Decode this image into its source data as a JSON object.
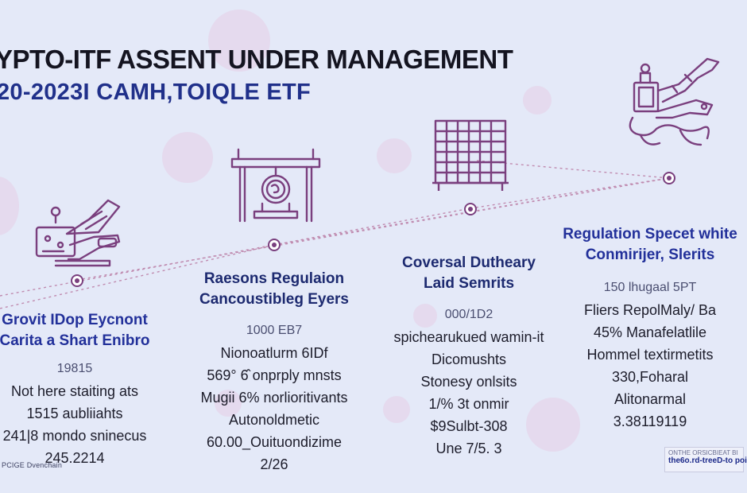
{
  "header": {
    "title": "YPTO-ITF ASSENT UNDER MANAGEMENT",
    "subtitle": "20-2023I CAMH,TOIQLE ETF"
  },
  "colors": {
    "background": "#e4e9f8",
    "accent_purple": "#7a3f7e",
    "heading_blue": "#22309a",
    "line_dotted": "#c08cb0"
  },
  "stages": [
    {
      "icon": "hand-wallet-icon",
      "heading": [
        "Grovit IDop Eycnont",
        "Carita a Shart Enibro"
      ],
      "lines": [
        "19815",
        "Not here staiting ats",
        "1515 aubliiahts",
        "241|8 mondo sninecus",
        "245.2214"
      ]
    },
    {
      "icon": "bank-gate-icon",
      "heading": [
        "Raesons Regulaion",
        "Cancoustibleg Eyers"
      ],
      "lines": [
        "1000 EB7",
        "Nionoatlurm 6IDf",
        "569° 6̂ onprply mnsts",
        "Mugii 6% norlioritivants",
        "Autonoldmetic",
        "60.00_Ouituondizime",
        "2/26"
      ]
    },
    {
      "icon": "grid-building-icon",
      "heading": [
        "Coversal Dutheary",
        "Laid Semrits"
      ],
      "lines": [
        "000/1D2",
        "spichearukued wamin-it",
        "Dicomushts",
        "Stonesy onlsits",
        "1/% 3t onmir",
        "$9Sulbt-308",
        "Une 7/5. 3"
      ]
    },
    {
      "icon": "machine-dragon-icon",
      "heading": [
        "Regulation Specet white",
        "Conmirijer, Slerits"
      ],
      "lines": [
        "150 lhugaal 5PT",
        "Fliers RepolMaly/ Ba",
        "45% Manafelatlile",
        "Hommel textirmetits",
        "330,Foharal",
        "Alitonarmal",
        "3.38119119"
      ]
    }
  ],
  "footer": {
    "left": "PCIGE  Dvenchain",
    "badge_top": "ONTHE ORSICBIEAT BI",
    "badge_main": "the6o.rd-treeD-to poi"
  }
}
